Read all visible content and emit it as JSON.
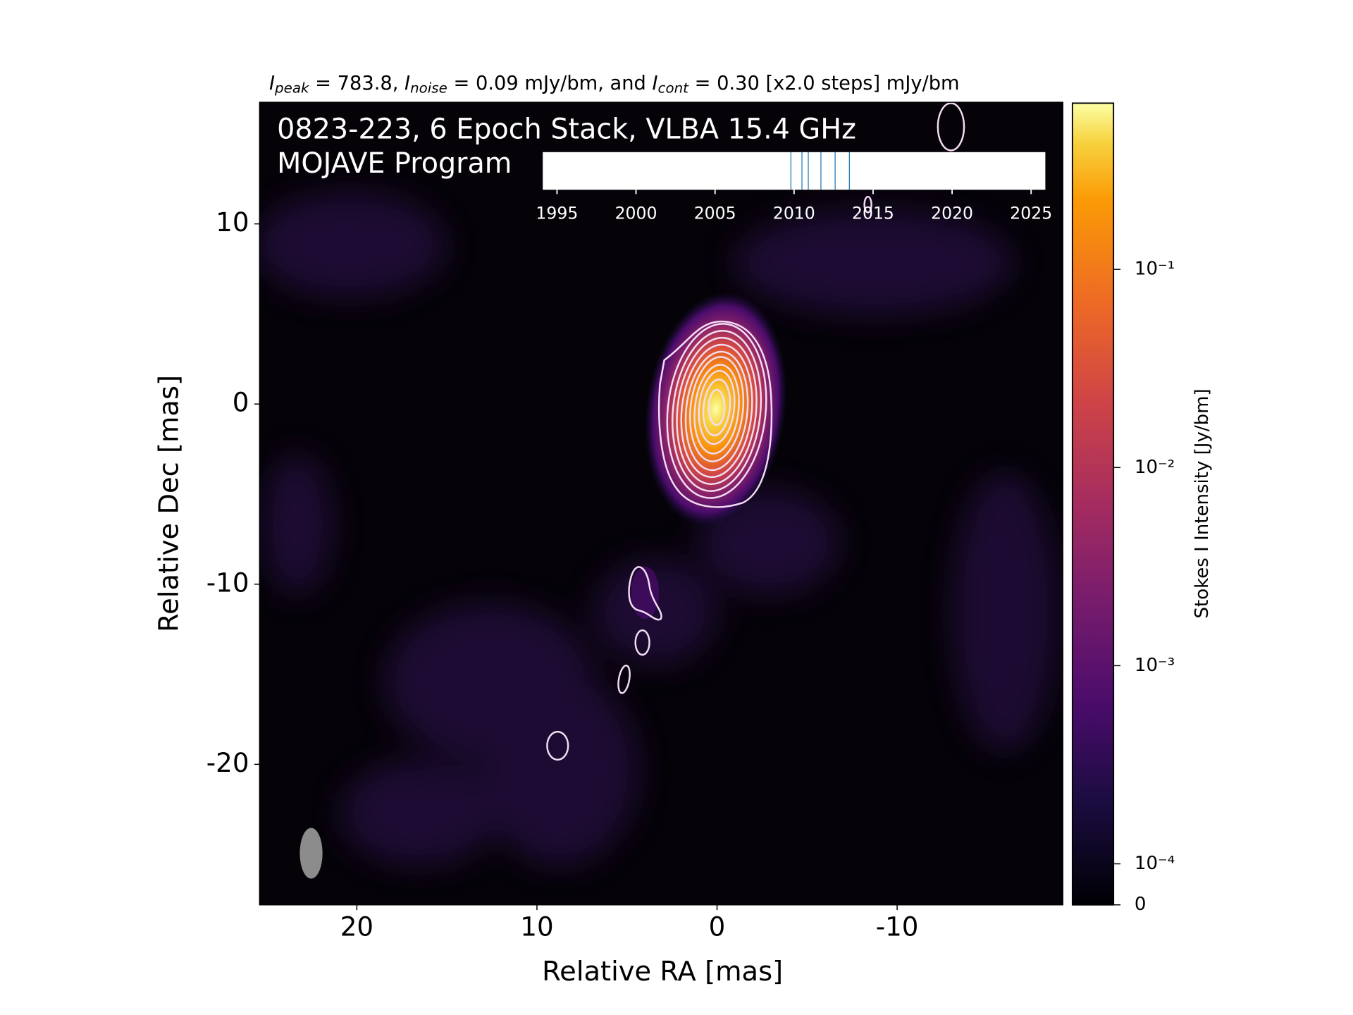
{
  "chart_data": {
    "type": "image",
    "title_parts": [
      "I",
      "peak",
      " = 783.8, ",
      "I",
      "noise",
      " = 0.09 mJy/bm, and ",
      "I",
      "cont",
      " = 0.30 [x2.0 steps] mJy/bm"
    ],
    "annotation": [
      "0823-223, 6 Epoch Stack, VLBA 15.4 GHz",
      "MOJAVE Program"
    ],
    "x_label": "Relative RA [mas]",
    "y_label": "Relative Dec [mas]",
    "xlim": [
      25.4,
      -19.2
    ],
    "ylim": [
      -27.8,
      16.75
    ],
    "xticks": [
      20,
      10,
      0,
      -10
    ],
    "yticks": [
      10,
      0,
      -10,
      -20
    ],
    "colorbar": {
      "label": "Stokes I Intensity [Jy/bm]",
      "scale": "symlog",
      "colormap": "inferno",
      "lim": [
        0,
        0.69
      ],
      "ticks": [
        0,
        {
          "value": 0.0001,
          "label": "10⁻⁴"
        },
        {
          "value": 0.001,
          "label": "10⁻³"
        },
        {
          "value": 0.01,
          "label": "10⁻²"
        },
        {
          "value": 0.1,
          "label": "10⁻¹"
        }
      ]
    },
    "epochs": {
      "xlim": [
        1994.1,
        2025.9
      ],
      "xticks": [
        1995,
        2000,
        2005,
        2010,
        2015,
        2020,
        2025
      ],
      "values": [
        2009.8,
        2010.5,
        2010.9,
        2011.7,
        2012.6,
        2013.5
      ],
      "color": "#1f77b4"
    }
  }
}
